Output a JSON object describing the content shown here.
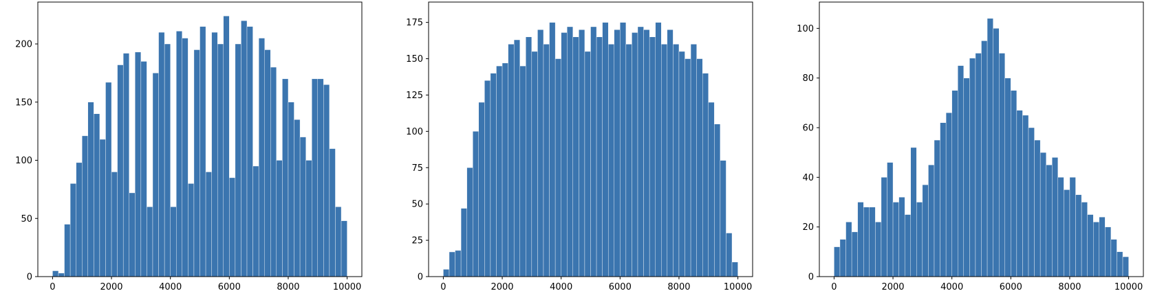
{
  "chart_data": [
    {
      "type": "histogram",
      "color": "#3b75af",
      "bins": [
        0,
        200,
        400,
        600,
        800,
        1000,
        1200,
        1400,
        1600,
        1800,
        2000,
        2200,
        2400,
        2600,
        2800,
        3000,
        3200,
        3400,
        3600,
        3800,
        4000,
        4200,
        4400,
        4600,
        4800,
        5000,
        5200,
        5400,
        5600,
        5800,
        6000,
        6200,
        6400,
        6600,
        6800,
        7000,
        7200,
        7400,
        7600,
        7800,
        8000,
        8200,
        8400,
        8600,
        8800,
        9000,
        9200,
        9400,
        9600,
        9800,
        10000
      ],
      "values": [
        5,
        3,
        45,
        80,
        98,
        121,
        150,
        140,
        118,
        167,
        90,
        182,
        192,
        72,
        193,
        185,
        60,
        175,
        210,
        200,
        60,
        211,
        205,
        80,
        195,
        215,
        90,
        210,
        200,
        224,
        85,
        200,
        220,
        215,
        95,
        205,
        195,
        180,
        100,
        170,
        150,
        135,
        120,
        100,
        170,
        170,
        165,
        110,
        60,
        48
      ],
      "xlim": [
        -500,
        10500
      ],
      "ylim": [
        0,
        236
      ],
      "xticks": [
        0,
        2000,
        4000,
        6000,
        8000,
        10000
      ],
      "yticks": [
        0,
        50,
        100,
        150,
        200
      ]
    },
    {
      "type": "histogram",
      "color": "#3b75af",
      "bins": [
        0,
        200,
        400,
        600,
        800,
        1000,
        1200,
        1400,
        1600,
        1800,
        2000,
        2200,
        2400,
        2600,
        2800,
        3000,
        3200,
        3400,
        3600,
        3800,
        4000,
        4200,
        4400,
        4600,
        4800,
        5000,
        5200,
        5400,
        5600,
        5800,
        6000,
        6200,
        6400,
        6600,
        6800,
        7000,
        7200,
        7400,
        7600,
        7800,
        8000,
        8200,
        8400,
        8600,
        8800,
        9000,
        9200,
        9400,
        9600,
        9800,
        10000
      ],
      "values": [
        5,
        17,
        18,
        47,
        75,
        100,
        120,
        135,
        140,
        145,
        147,
        160,
        163,
        145,
        165,
        155,
        170,
        160,
        175,
        150,
        168,
        172,
        165,
        170,
        155,
        172,
        165,
        175,
        160,
        170,
        175,
        160,
        168,
        172,
        170,
        165,
        175,
        160,
        170,
        160,
        155,
        150,
        160,
        150,
        140,
        120,
        105,
        80,
        30,
        10
      ],
      "xlim": [
        -500,
        10500
      ],
      "ylim": [
        0,
        189
      ],
      "xticks": [
        0,
        2000,
        4000,
        6000,
        8000,
        10000
      ],
      "yticks": [
        0,
        25,
        50,
        75,
        100,
        125,
        150,
        175
      ]
    },
    {
      "type": "histogram",
      "color": "#3b75af",
      "bins": [
        0,
        200,
        400,
        600,
        800,
        1000,
        1200,
        1400,
        1600,
        1800,
        2000,
        2200,
        2400,
        2600,
        2800,
        3000,
        3200,
        3400,
        3600,
        3800,
        4000,
        4200,
        4400,
        4600,
        4800,
        5000,
        5200,
        5400,
        5600,
        5800,
        6000,
        6200,
        6400,
        6600,
        6800,
        7000,
        7200,
        7400,
        7600,
        7800,
        8000,
        8200,
        8400,
        8600,
        8800,
        9000,
        9200,
        9400,
        9600,
        9800,
        10000
      ],
      "values": [
        12,
        15,
        22,
        18,
        30,
        28,
        28,
        22,
        40,
        46,
        30,
        32,
        25,
        52,
        30,
        37,
        45,
        55,
        62,
        66,
        75,
        85,
        80,
        88,
        90,
        95,
        104,
        100,
        90,
        80,
        75,
        67,
        65,
        60,
        55,
        50,
        45,
        48,
        40,
        35,
        40,
        33,
        30,
        25,
        22,
        24,
        20,
        15,
        10,
        8
      ],
      "xlim": [
        -500,
        10500
      ],
      "ylim": [
        0,
        110.6
      ],
      "xticks": [
        0,
        2000,
        4000,
        6000,
        8000,
        10000
      ],
      "yticks": [
        0,
        20,
        40,
        60,
        80,
        100
      ]
    }
  ]
}
